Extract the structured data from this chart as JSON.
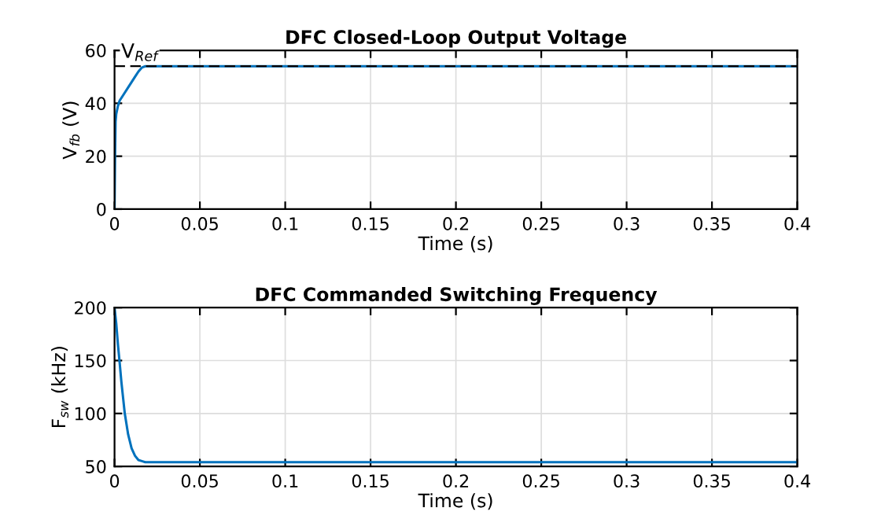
{
  "chart_data": [
    {
      "type": "line",
      "title": "DFC Closed-Loop Output Voltage",
      "xlabel": "Time (s)",
      "ylabel": "V$_{fb}$ (V)",
      "x": [
        0,
        0.0003,
        0.0006,
        0.001,
        0.002,
        0.003,
        0.005,
        0.008,
        0.01,
        0.012,
        0.014,
        0.016,
        0.018,
        0.02,
        0.03,
        0.1,
        0.2,
        0.3,
        0.4
      ],
      "series": [
        {
          "color": "#0072bd",
          "values": [
            0,
            20,
            33,
            36,
            39,
            41,
            43,
            46,
            48,
            50,
            52,
            53.5,
            54,
            54,
            54,
            54,
            54,
            54,
            54
          ]
        }
      ],
      "ref_lines": [
        {
          "axis": "y",
          "value": 54,
          "label": "V$_{Ref}$",
          "color": "#000000",
          "line_style": "dashed"
        }
      ],
      "xlim": [
        0,
        0.4
      ],
      "ylim": [
        0,
        60
      ],
      "xticks": [
        0,
        0.05,
        0.1,
        0.15,
        0.2,
        0.25,
        0.3,
        0.35,
        0.4
      ],
      "yticks": [
        0,
        20,
        40,
        60
      ],
      "grid": true
    },
    {
      "type": "line",
      "title": "DFC Commanded Switching Frequency",
      "xlabel": "Time (s)",
      "ylabel": "F$_{sw}$ (kHz)",
      "x": [
        0,
        0.001,
        0.002,
        0.003,
        0.004,
        0.005,
        0.006,
        0.008,
        0.01,
        0.012,
        0.014,
        0.016,
        0.018,
        0.02,
        0.05,
        0.1,
        0.2,
        0.3,
        0.4
      ],
      "series": [
        {
          "color": "#0072bd",
          "values": [
            200,
            185,
            165,
            148,
            130,
            115,
            100,
            80,
            67,
            60,
            56,
            55,
            54,
            54,
            54,
            54,
            54,
            54,
            54
          ]
        }
      ],
      "xlim": [
        0,
        0.4
      ],
      "ylim": [
        50,
        200
      ],
      "xticks": [
        0,
        0.05,
        0.1,
        0.15,
        0.2,
        0.25,
        0.3,
        0.35,
        0.4
      ],
      "yticks": [
        50,
        100,
        150,
        200
      ],
      "grid": true
    }
  ]
}
